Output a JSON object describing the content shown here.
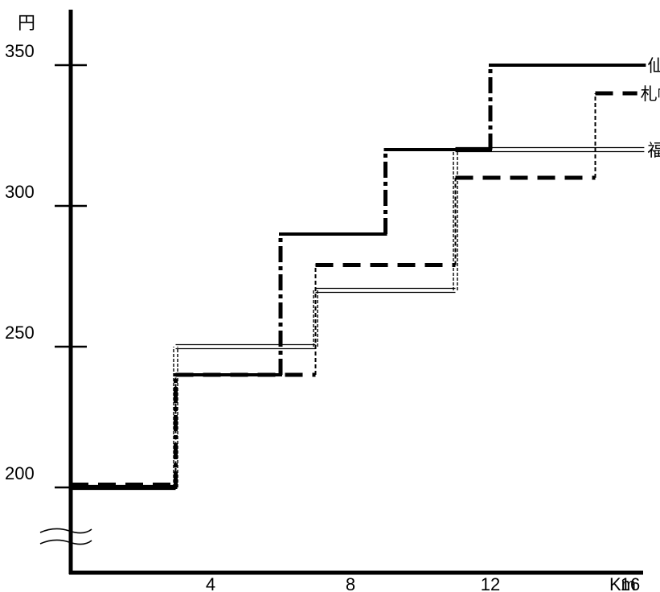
{
  "chart_data": {
    "type": "line",
    "step": true,
    "y_unit": "円",
    "x_unit": "Km",
    "xlim": [
      0,
      16.5
    ],
    "ylim": [
      188,
      360
    ],
    "y_ticks": [
      200,
      250,
      300,
      350
    ],
    "y_tick_labels": [
      "200",
      "250",
      "300",
      "350"
    ],
    "x_ticks": [
      4,
      8,
      12,
      16
    ],
    "x_tick_labels": [
      "4",
      "8",
      "12",
      "16"
    ],
    "y_axis_break": true,
    "grid": false,
    "legend": "right-end labels",
    "series": [
      {
        "name": "仙台",
        "style": "solid-dashdot",
        "color": "#000000",
        "points": [
          [
            0,
            200
          ],
          [
            3,
            200
          ],
          [
            3,
            240
          ],
          [
            6,
            240
          ],
          [
            6,
            290
          ],
          [
            9,
            290
          ],
          [
            9,
            320
          ],
          [
            12,
            320
          ],
          [
            12,
            350
          ],
          [
            16.4,
            350
          ]
        ]
      },
      {
        "name": "札幌",
        "style": "dashed",
        "color": "#000000",
        "points": [
          [
            0,
            201
          ],
          [
            3,
            201
          ],
          [
            3,
            240
          ],
          [
            7,
            240
          ],
          [
            7,
            279
          ],
          [
            11,
            279
          ],
          [
            11,
            310
          ],
          [
            15,
            310
          ],
          [
            15,
            340
          ],
          [
            16.2,
            340
          ]
        ]
      },
      {
        "name": "福岡",
        "style": "double",
        "color": "#000000",
        "points": [
          [
            0,
            200
          ],
          [
            3,
            200
          ],
          [
            3,
            250
          ],
          [
            7,
            250
          ],
          [
            7,
            270
          ],
          [
            11,
            270
          ],
          [
            11,
            320
          ],
          [
            16.4,
            320
          ]
        ]
      }
    ]
  }
}
